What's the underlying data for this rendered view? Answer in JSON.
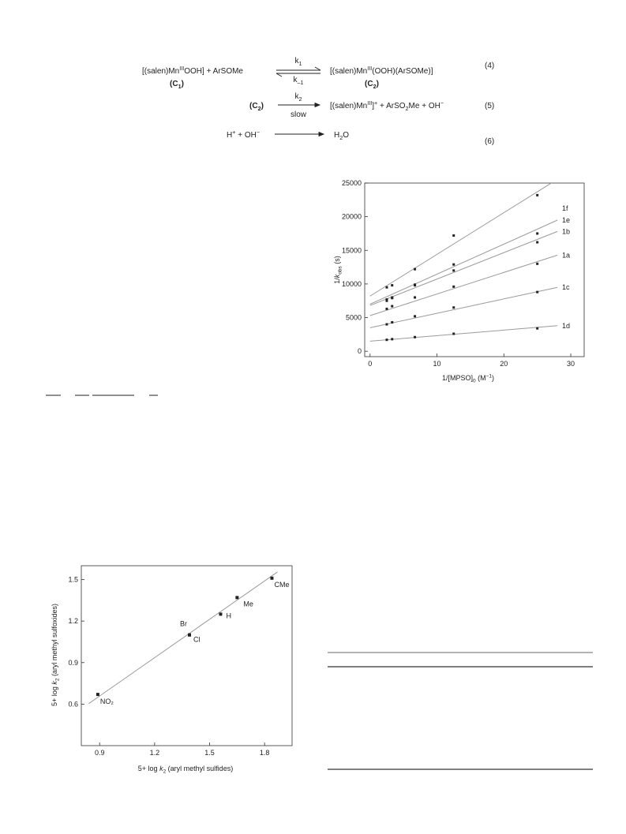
{
  "scheme": {
    "eq4": {
      "reactant": [
        "[(salen)Mn",
        "III",
        "OOH]  +  ArSOMe"
      ],
      "reactant_label": [
        "(C",
        "1",
        ")"
      ],
      "top": [
        "k",
        "1"
      ],
      "bottom": [
        "k",
        "–1"
      ],
      "product": [
        "[(salen)Mn",
        "III",
        "(OOH)(ArSOMe)]"
      ],
      "product_label": [
        "(C",
        "2",
        ")"
      ],
      "number": "(4)"
    },
    "eq5": {
      "reactant": [
        "(C",
        "2",
        ")"
      ],
      "top": [
        "k",
        "2"
      ],
      "bottom": "slow",
      "product": [
        "[(salen)Mn",
        "III",
        "]",
        "+",
        "  +  ArSO",
        "2",
        "Me + OH",
        "−"
      ],
      "number": "(5)"
    },
    "eq6": {
      "reactant": [
        "H",
        "+",
        "  +  OH",
        "−"
      ],
      "product": [
        "H",
        "2",
        "O"
      ],
      "number": "(6)"
    }
  },
  "chart_data": [
    {
      "type": "scatter",
      "x_label": [
        "1/[MPSO]",
        "0",
        " (M",
        "−1",
        ")"
      ],
      "y_label": [
        "1/",
        "k",
        "obs",
        " (s)"
      ],
      "x": [
        2.5,
        3.3,
        6.7,
        12.5,
        25
      ],
      "xlim": [
        -0.8,
        32
      ],
      "xticks": [
        0,
        10,
        20,
        30
      ],
      "ylim": [
        -800,
        25000
      ],
      "yticks": [
        0,
        5000,
        10000,
        15000,
        20000,
        25000
      ],
      "fit_x": [
        0,
        28
      ],
      "series": [
        {
          "name": "1f",
          "values": [
            9500,
            9800,
            12200,
            17200,
            23200
          ],
          "fit": [
            8200,
            620
          ]
        },
        {
          "name": "1e",
          "values": [
            7700,
            8000,
            9900,
            12900,
            17500
          ],
          "fit": [
            7000,
            446
          ]
        },
        {
          "name": "1b",
          "values": [
            7500,
            7900,
            9800,
            12000,
            16200
          ],
          "fit": [
            6800,
            393
          ]
        },
        {
          "name": "1a",
          "values": [
            6300,
            6700,
            8000,
            9600,
            13000
          ],
          "fit": [
            5300,
            321
          ]
        },
        {
          "name": "1c",
          "values": [
            4000,
            4300,
            5200,
            6500,
            8800
          ],
          "fit": [
            3500,
            214
          ]
        },
        {
          "name": "1d",
          "values": [
            1700,
            1800,
            2100,
            2600,
            3400
          ],
          "fit": [
            1500,
            82
          ]
        }
      ],
      "marker_color": "#222222",
      "line_color": "#9a9a9a"
    },
    {
      "type": "scatter",
      "x_label": [
        "5+ log ",
        "k",
        "2",
        " (aryl methyl sulfides)"
      ],
      "y_label": [
        "5+ log ",
        "k",
        "2",
        " (aryl methyl sulfoxides)"
      ],
      "labels": [
        "NO₂",
        "Br",
        "Cl",
        "H",
        "Me",
        "CMe"
      ],
      "x": [
        0.89,
        1.39,
        1.39,
        1.56,
        1.65,
        1.84
      ],
      "values": [
        0.67,
        1.1,
        1.1,
        1.25,
        1.37,
        1.51
      ],
      "xlim": [
        0.8,
        1.95
      ],
      "xticks": [
        0.9,
        1.2,
        1.5,
        1.8
      ],
      "ylim": [
        0.3,
        1.6
      ],
      "yticks": [
        0.6,
        0.9,
        1.2,
        1.5
      ],
      "fit": [
        -0.173,
        0.924
      ],
      "fit_x": [
        0.84,
        1.87
      ],
      "marker_color": "#222222",
      "line_color": "#9a9a9a"
    }
  ]
}
